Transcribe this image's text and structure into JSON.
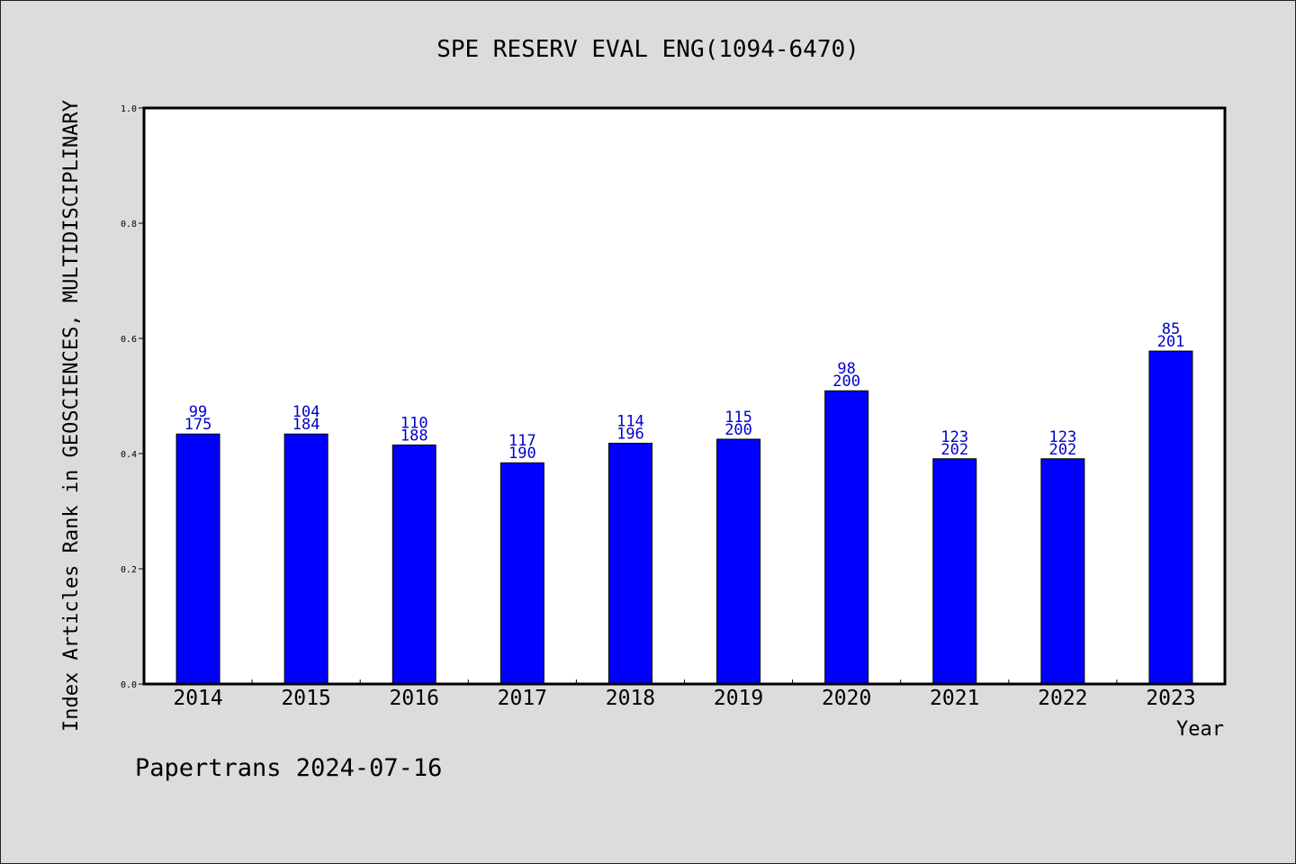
{
  "chart_data": {
    "type": "bar",
    "title": "SPE RESERV EVAL ENG(1094-6470)",
    "xlabel": "Year",
    "ylabel": "Index Articles Rank in GEOSCIENCES, MULTIDISCIPLINARY",
    "ylim": [
      0.0,
      1.0
    ],
    "yticks": [
      "0.0",
      "0.2",
      "0.4",
      "0.6",
      "0.8",
      "1.0"
    ],
    "categories": [
      "2014",
      "2015",
      "2016",
      "2017",
      "2018",
      "2019",
      "2020",
      "2021",
      "2022",
      "2023"
    ],
    "values": [
      0.434,
      0.434,
      0.415,
      0.384,
      0.418,
      0.425,
      0.509,
      0.391,
      0.391,
      0.578
    ],
    "ranks": [
      "99",
      "104",
      "110",
      "117",
      "114",
      "115",
      "98",
      "123",
      "123",
      "85"
    ],
    "totals": [
      "175",
      "184",
      "188",
      "190",
      "196",
      "200",
      "200",
      "202",
      "202",
      "201"
    ],
    "bar_color": "#0000ff",
    "label_color": "#0000cc",
    "grid": false,
    "legend": "none"
  },
  "footer": {
    "credit": "Papertrans 2024-07-16"
  }
}
